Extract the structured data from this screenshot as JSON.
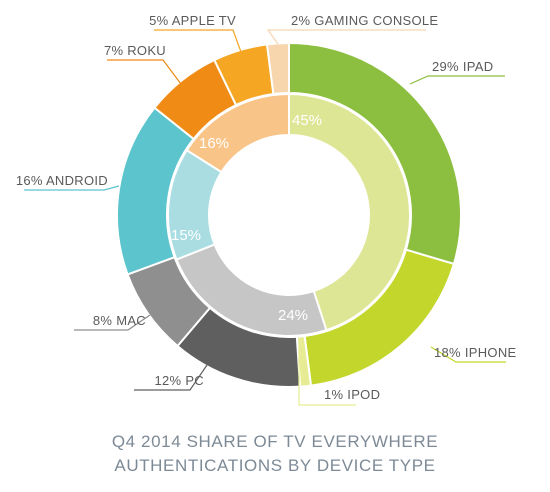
{
  "chart_data": {
    "type": "donut",
    "title_lines": [
      "Q4 2014 SHARE OF TV EVERYWHERE",
      "AUTHENTICATIONS BY DEVICE TYPE"
    ],
    "outer_ring": [
      {
        "label": "IPAD",
        "value": 29,
        "display": "29% IPAD",
        "color": "#8cbe3f"
      },
      {
        "label": "IPHONE",
        "value": 18,
        "display": "18% IPHONE",
        "color": "#c3d62b"
      },
      {
        "label": "IPOD",
        "value": 1,
        "display": "1% IPOD",
        "color": "#e7ec94"
      },
      {
        "label": "PC",
        "value": 12,
        "display": "12% PC",
        "color": "#5f5f5f"
      },
      {
        "label": "MAC",
        "value": 8,
        "display": "8% MAC",
        "color": "#8f8f8f"
      },
      {
        "label": "ANDROID",
        "value": 16,
        "display": "16% ANDROID",
        "color": "#5bc4cd"
      },
      {
        "label": "ROKU",
        "value": 7,
        "display": "7% ROKU",
        "color": "#f08b16"
      },
      {
        "label": "APPLE TV",
        "value": 5,
        "display": "5% APPLE TV",
        "color": "#f5a623"
      },
      {
        "label": "GAMING CONSOLE",
        "value": 2,
        "display": "2% GAMING CONSOLE",
        "color": "#f7d6ae"
      }
    ],
    "inner_ring": [
      {
        "value": 45,
        "display": "45%",
        "color": "#dde694"
      },
      {
        "value": 24,
        "display": "24%",
        "color": "#c6c6c6"
      },
      {
        "value": 15,
        "display": "15%",
        "color": "#a9dde2"
      },
      {
        "value": 16,
        "display": "16%",
        "color": "#f8c488"
      }
    ]
  }
}
